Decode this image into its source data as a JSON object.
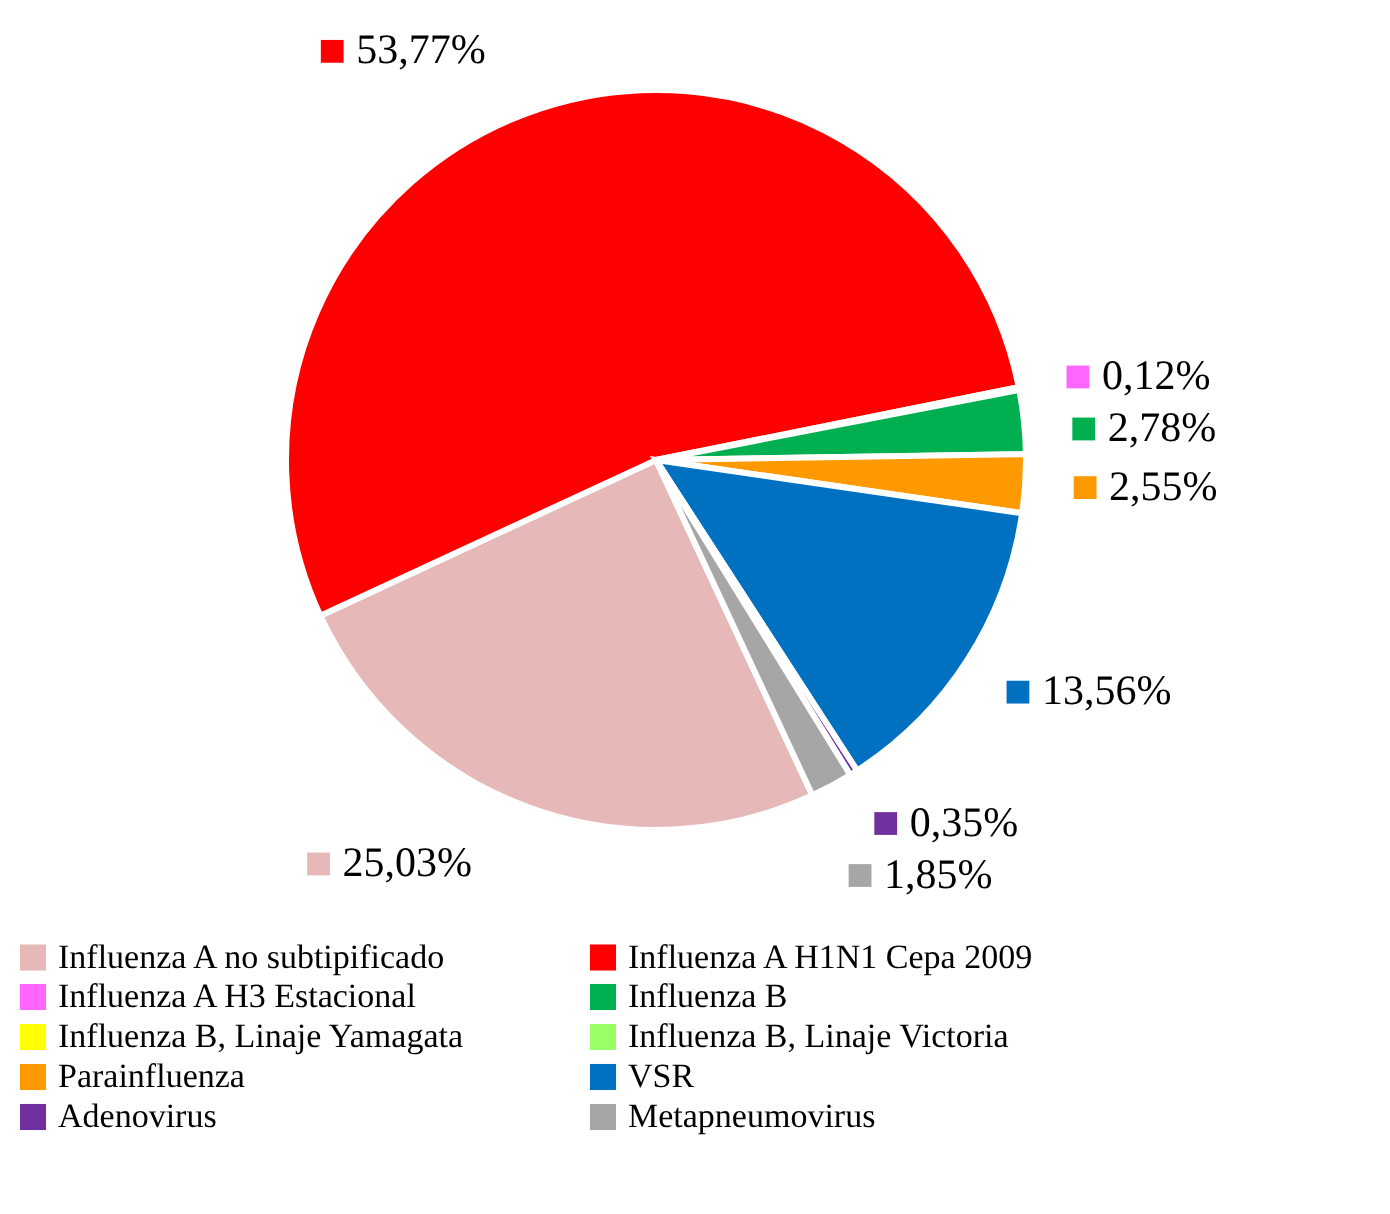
{
  "chart_data": {
    "type": "pie",
    "categories": [
      "Influenza A no subtipificado",
      "Influenza A H1N1 Cepa 2009",
      "Influenza A H3 Estacional",
      "Influenza B",
      "Influenza B, Linaje Yamagata",
      "Influenza B, Linaje Victoria",
      "Parainfluenza",
      "VSR",
      "Adenovirus",
      "Metapneumovirus"
    ],
    "values": [
      25.03,
      53.77,
      0.12,
      2.78,
      0,
      0,
      2.55,
      13.56,
      0.35,
      1.85
    ],
    "colors": [
      "#e6b9b8",
      "#ff0000",
      "#ff66ff",
      "#00b050",
      "#ffff00",
      "#99ff66",
      "#ff9900",
      "#0070c0",
      "#7030a0",
      "#a6a6a6"
    ],
    "value_labels": [
      "25,03%",
      "53,77%",
      "0,12%",
      "2,78%",
      null,
      null,
      "2,55%",
      "13,56%",
      "0,35%",
      "1,85%"
    ],
    "legend": "bottom"
  }
}
